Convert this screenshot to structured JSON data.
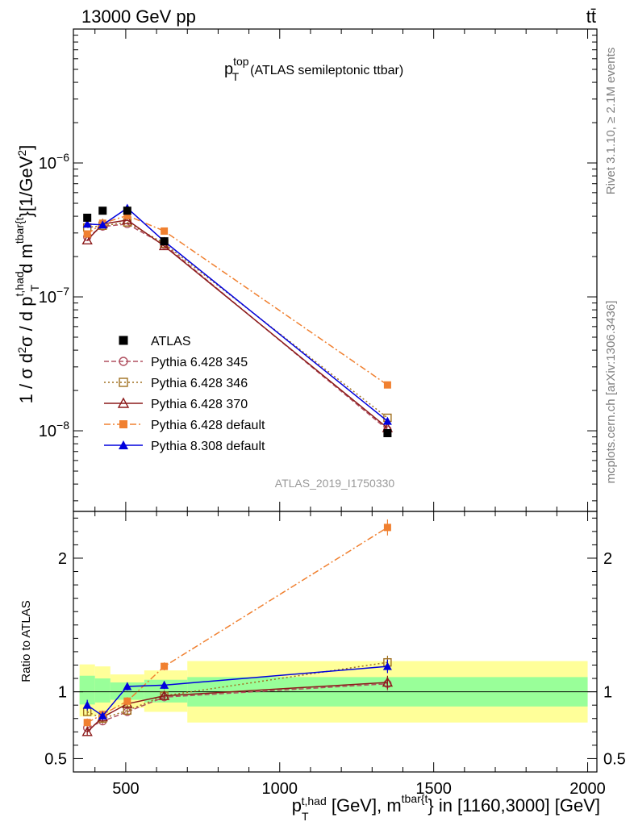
{
  "header": {
    "left": "13000 GeV pp",
    "right": "tt̄"
  },
  "side_labels": {
    "rivet": "Rivet 3.1.10, ≥ 2.1M events",
    "mcplots": "mcplots.cern.ch [arXiv:1306.3436]"
  },
  "analysis_id": "ATLAS_2019_I1750330",
  "chart_data": [
    {
      "type": "scatter",
      "panel": "main",
      "title": "p_T^top (ATLAS semileptonic ttbar)",
      "ylabel": "1 / σ d²σ / d p_T^{t,had} d m^{tbar{t}} [1/GeV²]",
      "y_scale": "log",
      "xlim": [
        330,
        2030
      ],
      "ylim": [
        2.5e-09,
        1e-05
      ],
      "y_ticks": [
        {
          "value": 1e-08,
          "base": "10",
          "exp": "−8"
        },
        {
          "value": 1e-07,
          "base": "10",
          "exp": "−7"
        },
        {
          "value": 1e-06,
          "base": "10",
          "exp": "−6"
        }
      ],
      "legend_position": "lower-left",
      "series": [
        {
          "name": "ATLAS",
          "color": "#000000",
          "marker": "square-filled",
          "line": "none",
          "x": [
            375,
            425,
            505,
            625,
            1350
          ],
          "y": [
            3.9e-07,
            4.4e-07,
            4.4e-07,
            2.6e-07,
            9.6e-09
          ]
        },
        {
          "name": "Pythia 6.428 345",
          "color": "#b05060",
          "marker": "circle-open",
          "line": "dashed",
          "x": [
            375,
            425,
            505,
            625,
            1350
          ],
          "y": [
            2.8e-07,
            3.35e-07,
            3.5e-07,
            2.45e-07,
            1.02e-08
          ]
        },
        {
          "name": "Pythia 6.428 346",
          "color": "#a07020",
          "marker": "square-open",
          "line": "dotted",
          "x": [
            375,
            425,
            505,
            625,
            1350
          ],
          "y": [
            3.3e-07,
            3.4e-07,
            3.6e-07,
            2.5e-07,
            1.25e-08
          ]
        },
        {
          "name": "Pythia 6.428 370",
          "color": "#8b1a1a",
          "marker": "triangle-open",
          "line": "solid",
          "x": [
            375,
            425,
            505,
            625,
            1350
          ],
          "y": [
            2.65e-07,
            3.5e-07,
            3.75e-07,
            2.4e-07,
            1.05e-08
          ]
        },
        {
          "name": "Pythia 6.428 default",
          "color": "#f08030",
          "marker": "square-filled",
          "line": "dashdot",
          "x": [
            375,
            425,
            505,
            625,
            1350
          ],
          "y": [
            2.95e-07,
            3.55e-07,
            4.05e-07,
            3.1e-07,
            2.2e-08
          ]
        },
        {
          "name": "Pythia 8.308 default",
          "color": "#0000dd",
          "marker": "triangle-filled",
          "line": "solid",
          "x": [
            375,
            425,
            505,
            625,
            1350
          ],
          "y": [
            3.5e-07,
            3.45e-07,
            4.6e-07,
            2.6e-07,
            1.18e-08
          ]
        }
      ]
    },
    {
      "type": "scatter",
      "panel": "ratio",
      "ylabel": "Ratio to ATLAS",
      "xlabel": "p_T^{t,had} [GeV], m^{tbar{t}} in [1160,3000] [GeV]",
      "xlim": [
        330,
        2030
      ],
      "ylim": [
        0.4,
        2.35
      ],
      "x_ticks": [
        500,
        1000,
        1500,
        2000
      ],
      "y_ticks": [
        0.5,
        1,
        2
      ],
      "reference": 1,
      "bands": [
        {
          "x0": 350,
          "x1": 400,
          "inner": [
            0.905,
            1.12
          ],
          "outer": [
            0.815,
            1.205
          ]
        },
        {
          "x0": 400,
          "x1": 450,
          "inner": [
            0.92,
            1.1
          ],
          "outer": [
            0.83,
            1.19
          ]
        },
        {
          "x0": 450,
          "x1": 560,
          "inner": [
            0.94,
            1.07
          ],
          "outer": [
            0.88,
            1.13
          ]
        },
        {
          "x0": 560,
          "x1": 700,
          "inner": [
            0.92,
            1.09
          ],
          "outer": [
            0.85,
            1.16
          ]
        },
        {
          "x0": 700,
          "x1": 2000,
          "inner": [
            0.89,
            1.11
          ],
          "outer": [
            0.77,
            1.23
          ]
        }
      ],
      "series": [
        {
          "name": "Pythia 6.428 345",
          "x": [
            375,
            425,
            505,
            625,
            1350
          ],
          "y": [
            0.73,
            0.78,
            0.85,
            0.96,
            1.06
          ],
          "err": [
            0.03,
            0.03,
            0.03,
            0.03,
            0.05
          ]
        },
        {
          "name": "Pythia 6.428 346",
          "x": [
            375,
            425,
            505,
            625,
            1350
          ],
          "y": [
            0.85,
            0.8,
            0.86,
            0.97,
            1.22
          ],
          "err": [
            0.03,
            0.03,
            0.03,
            0.03,
            0.05
          ]
        },
        {
          "name": "Pythia 6.428 370",
          "x": [
            375,
            425,
            505,
            625,
            1350
          ],
          "y": [
            0.7,
            0.81,
            0.91,
            0.97,
            1.07
          ],
          "err": [
            0.03,
            0.03,
            0.03,
            0.03,
            0.05
          ]
        },
        {
          "name": "Pythia 6.428 default",
          "x": [
            375,
            425,
            505,
            625,
            1350
          ],
          "y": [
            0.77,
            0.83,
            0.93,
            1.19,
            2.23
          ],
          "err": [
            0.03,
            0.03,
            0.03,
            0.03,
            0.06
          ]
        },
        {
          "name": "Pythia 8.308 default",
          "x": [
            375,
            425,
            505,
            625,
            1350
          ],
          "y": [
            0.9,
            0.82,
            1.04,
            1.05,
            1.19
          ],
          "err": [
            0.04,
            0.03,
            0.03,
            0.03,
            0.05
          ]
        }
      ]
    }
  ]
}
